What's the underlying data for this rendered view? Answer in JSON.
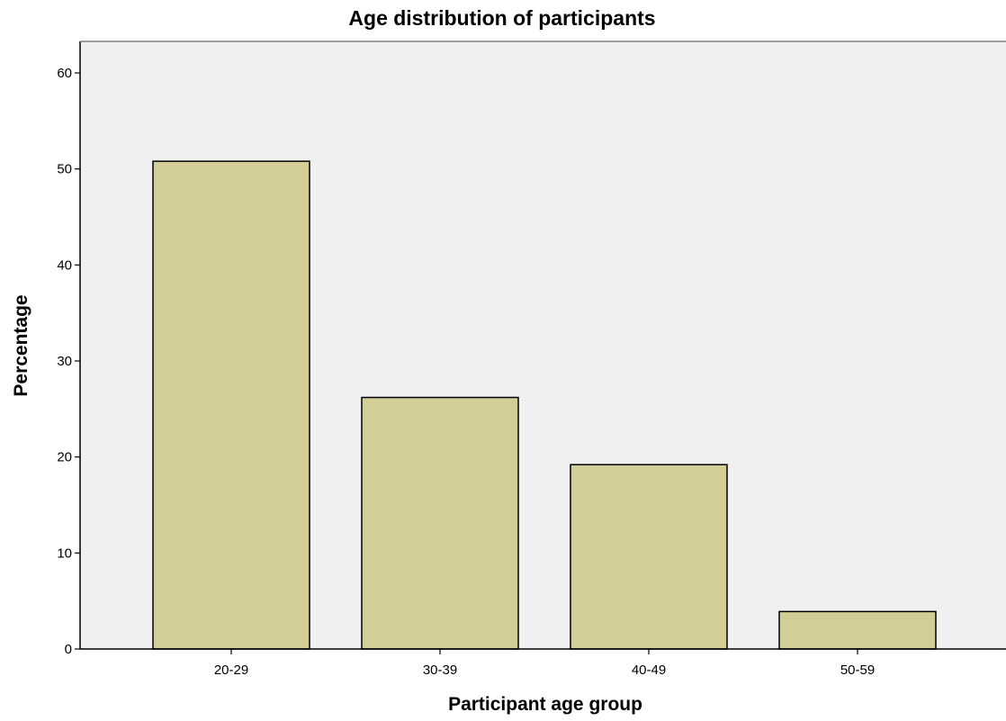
{
  "chart_data": {
    "type": "bar",
    "title": "Age distribution of participants",
    "xlabel": "Participant age group",
    "ylabel": "Percentage",
    "categories": [
      "20-29",
      "30-39",
      "40-49",
      "50-59"
    ],
    "values": [
      50.8,
      26.2,
      19.2,
      3.9
    ],
    "ylim": [
      0,
      60
    ],
    "yticks": [
      0,
      10,
      20,
      30,
      40,
      50,
      60
    ],
    "grid": false,
    "legend": "none"
  },
  "colors": {
    "plot_background": "#f0f0f0",
    "bar_fill": "#d3ce97",
    "bar_stroke": "#000000",
    "axis": "#000000"
  }
}
